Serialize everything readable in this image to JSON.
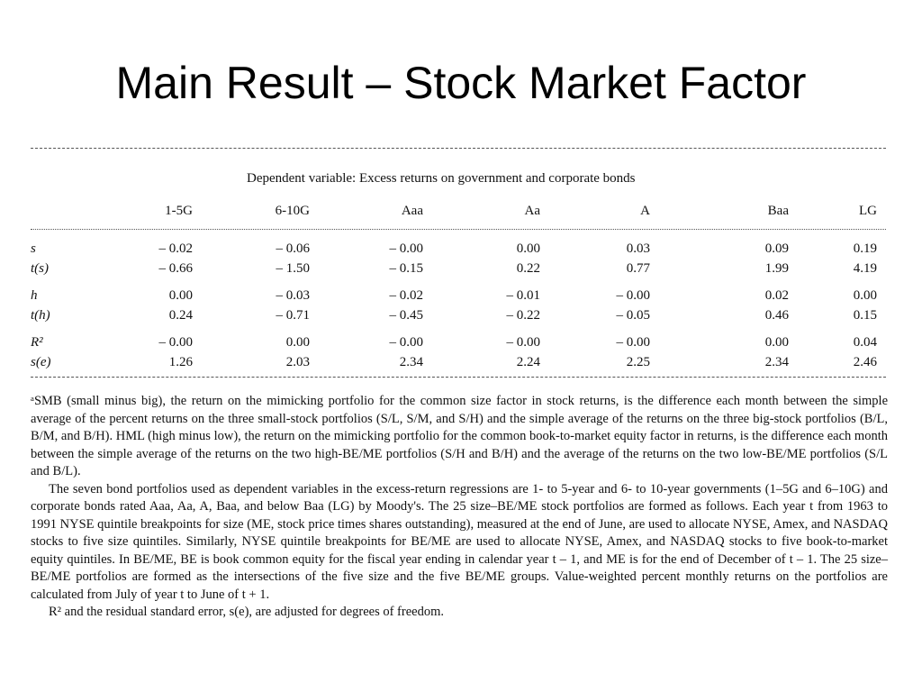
{
  "title": "Main Result – Stock Market Factor",
  "table": {
    "dependent_variable": "Dependent variable: Excess returns on government and corporate bonds",
    "columns": [
      "1-5G",
      "6-10G",
      "Aaa",
      "Aa",
      "A",
      "Baa",
      "LG"
    ],
    "rows": [
      {
        "label": "s",
        "values": [
          "– 0.02",
          "– 0.06",
          "– 0.00",
          "0.00",
          "0.03",
          "0.09",
          "0.19"
        ]
      },
      {
        "label": "t(s)",
        "values": [
          "– 0.66",
          "– 1.50",
          "– 0.15",
          "0.22",
          "0.77",
          "1.99",
          "4.19"
        ]
      },
      {
        "label": "h",
        "values": [
          "0.00",
          "– 0.03",
          "– 0.02",
          "– 0.01",
          "– 0.00",
          "0.02",
          "0.00"
        ]
      },
      {
        "label": "t(h)",
        "values": [
          "0.24",
          "– 0.71",
          "– 0.45",
          "– 0.22",
          "– 0.05",
          "0.46",
          "0.15"
        ]
      },
      {
        "label": "R²",
        "values": [
          "– 0.00",
          "0.00",
          "– 0.00",
          "– 0.00",
          "– 0.00",
          "0.00",
          "0.04"
        ]
      },
      {
        "label": "s(e)",
        "values": [
          "1.26",
          "2.03",
          "2.34",
          "2.24",
          "2.25",
          "2.34",
          "2.46"
        ]
      }
    ]
  },
  "notes": {
    "p1": "ᵃSMB (small minus big), the return on the mimicking portfolio for the common size factor in stock returns, is the difference each month between the simple average of the percent returns on the three small-stock portfolios (S/L, S/M, and S/H) and the simple average of the returns on the three big-stock portfolios (B/L, B/M, and B/H). HML (high minus low), the return on the mimicking portfolio for the common book-to-market equity factor in returns, is the difference each month between the simple average of the returns on the two high-BE/ME portfolios (S/H and B/H) and the average of the returns on the two low-BE/ME portfolios (S/L and B/L).",
    "p2": "The seven bond portfolios used as dependent variables in the excess-return regressions are 1- to 5-year and 6- to 10-year governments (1–5G and 6–10G) and corporate bonds rated Aaa, Aa, A, Baa, and below Baa (LG) by Moody's. The 25 size–BE/ME stock portfolios are formed as follows. Each year t from 1963 to 1991 NYSE quintile breakpoints for size (ME, stock price times shares outstanding), measured at the end of June, are used to allocate NYSE, Amex, and NASDAQ stocks to five size quintiles. Similarly, NYSE quintile breakpoints for BE/ME are used to allocate NYSE, Amex, and NASDAQ stocks to five book-to-market equity quintiles. In BE/ME, BE is book common equity for the fiscal year ending in calendar year t – 1, and ME is for the end of December of t – 1. The 25 size–BE/ME portfolios are formed as the intersections of the five size and the five BE/ME groups. Value-weighted percent monthly returns on the portfolios are calculated from July of year t to June of t + 1.",
    "p3": "R² and the residual standard error, s(e), are adjusted for degrees of freedom."
  }
}
